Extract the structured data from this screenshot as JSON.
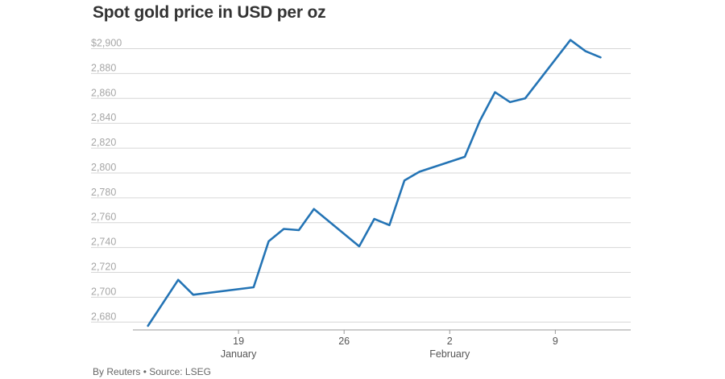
{
  "title": "Spot gold price in USD per oz",
  "footer": "By Reuters • Source: LSEG",
  "chart_data": {
    "type": "line",
    "title": "Spot gold price in USD per oz",
    "xlabel": "",
    "ylabel": "",
    "ylim": [
      2675,
      2912
    ],
    "yticks": [
      2680,
      2700,
      2720,
      2740,
      2760,
      2780,
      2800,
      2820,
      2840,
      2860,
      2880,
      2900
    ],
    "ytick_labels": [
      "2,680",
      "2,700",
      "2,720",
      "2,740",
      "2,760",
      "2,780",
      "2,800",
      "2,820",
      "2,840",
      "2,860",
      "2,880",
      "$2,900"
    ],
    "xticks": [
      {
        "date": "2025-01-19",
        "label": "19",
        "sublabel": "January"
      },
      {
        "date": "2025-01-26",
        "label": "26",
        "sublabel": ""
      },
      {
        "date": "2025-02-02",
        "label": "2",
        "sublabel": "February"
      },
      {
        "date": "2025-02-09",
        "label": "9",
        "sublabel": ""
      }
    ],
    "grid": true,
    "color": "#2474b5",
    "series": [
      {
        "x": [
          "2025-01-13",
          "2025-01-15",
          "2025-01-16",
          "2025-01-20",
          "2025-01-21",
          "2025-01-22",
          "2025-01-23",
          "2025-01-24",
          "2025-01-27",
          "2025-01-28",
          "2025-01-29",
          "2025-01-30",
          "2025-01-31",
          "2025-02-03",
          "2025-02-04",
          "2025-02-05",
          "2025-02-06",
          "2025-02-07",
          "2025-02-10",
          "2025-02-11",
          "2025-02-12"
        ],
        "values": [
          2677,
          2714,
          2702,
          2708,
          2745,
          2755,
          2754,
          2771,
          2741,
          2763,
          2758,
          2794,
          2801,
          2813,
          2842,
          2865,
          2857,
          2860,
          2907,
          2898,
          2893
        ]
      }
    ]
  }
}
